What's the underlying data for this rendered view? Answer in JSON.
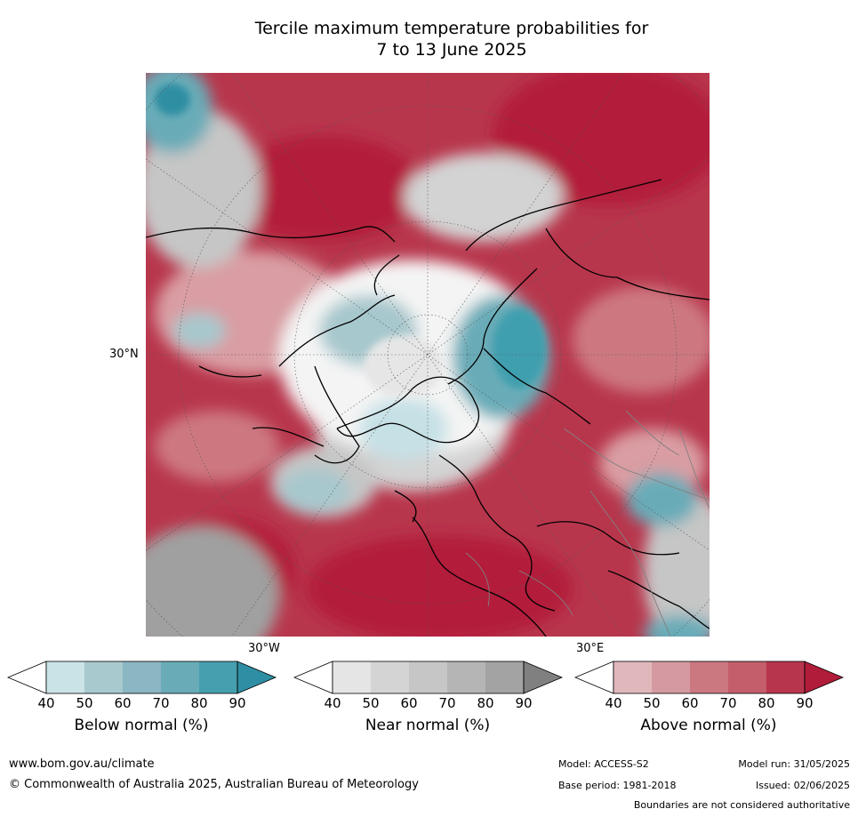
{
  "title": {
    "line1": "Tercile maximum temperature probabilities for",
    "line2": "7 to 13 June 2025"
  },
  "map": {
    "projection": "north-polar-stereographic",
    "lat_labels": [
      "30°N"
    ],
    "lon_labels": [
      "30°W",
      "30°E"
    ],
    "colors": {
      "below_normal": [
        "#c6e1e6",
        "#a7c8cd",
        "#88b5c2",
        "#69acb8",
        "#3f9fae",
        "#2d8fa3"
      ],
      "near_normal": [
        "#e6e6e6",
        "#d3d3d3",
        "#c6c6c6",
        "#b3b3b3",
        "#a0a0a0",
        "#808080"
      ],
      "above_normal": [
        "#e1b9bc",
        "#d99da3",
        "#cd7881",
        "#c95e6a",
        "#b8364c",
        "#b31b3b"
      ]
    }
  },
  "colorbars": [
    {
      "name": "below",
      "label": "Below normal (%)",
      "ticks": [
        "40",
        "50",
        "60",
        "70",
        "80",
        "90"
      ],
      "colors": [
        "#c9e3e7",
        "#a8c9cd",
        "#8bb6c3",
        "#69acb8",
        "#469faf",
        "#2e8ea3"
      ]
    },
    {
      "name": "near",
      "label": "Near normal (%)",
      "ticks": [
        "40",
        "50",
        "60",
        "70",
        "80",
        "90"
      ],
      "colors": [
        "#e5e5e5",
        "#d4d4d4",
        "#c6c6c6",
        "#b5b5b5",
        "#a3a3a3",
        "#808080"
      ]
    },
    {
      "name": "above",
      "label": "Above normal (%)",
      "ticks": [
        "40",
        "50",
        "60",
        "70",
        "80",
        "90"
      ],
      "colors": [
        "#e0b8bc",
        "#d59aa1",
        "#cc7881",
        "#c45e6a",
        "#b8364d",
        "#b01c3a"
      ]
    }
  ],
  "footer": {
    "website": "www.bom.gov.au/climate",
    "copyright": "© Commonwealth of Australia 2025, Australian Bureau of Meteorology",
    "model": "Model: ACCESS-S2",
    "base_period": "Base period: 1981-2018",
    "model_run": "Model run: 31/05/2025",
    "issued": "Issued: 02/06/2025",
    "disclaimer": "Boundaries are not considered authoritative"
  }
}
